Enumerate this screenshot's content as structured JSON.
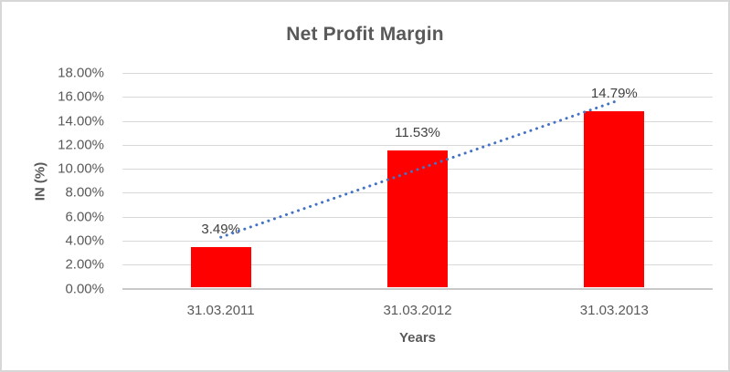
{
  "chart_data": {
    "type": "bar",
    "title": "Net Profit Margin",
    "categories": [
      "31.03.2011",
      "31.03.2012",
      "31.03.2013"
    ],
    "series": [
      {
        "name": "Net Profit Margin",
        "values": [
          3.49,
          11.53,
          14.79
        ]
      }
    ],
    "data_labels": [
      "3.49%",
      "11.53%",
      "14.79%"
    ],
    "xlabel": "Years",
    "ylabel": "IN (%)",
    "ylim": [
      0,
      18
    ],
    "ytick_step": 2,
    "ytick_labels": [
      "0.00%",
      "2.00%",
      "4.00%",
      "6.00%",
      "8.00%",
      "10.00%",
      "12.00%",
      "14.00%",
      "16.00%",
      "18.00%"
    ],
    "grid": true,
    "legend": "none",
    "trendline": {
      "type": "linear",
      "style": "dotted"
    }
  },
  "colors": {
    "bar": "#ff0000",
    "trendline": "#4472c4",
    "title_text": "#595959",
    "axis_text": "#595959",
    "data_label_text": "#404040",
    "gridline": "#d9d9d9",
    "axis_line": "#c9c9c9",
    "border": "#d7d7d7"
  }
}
